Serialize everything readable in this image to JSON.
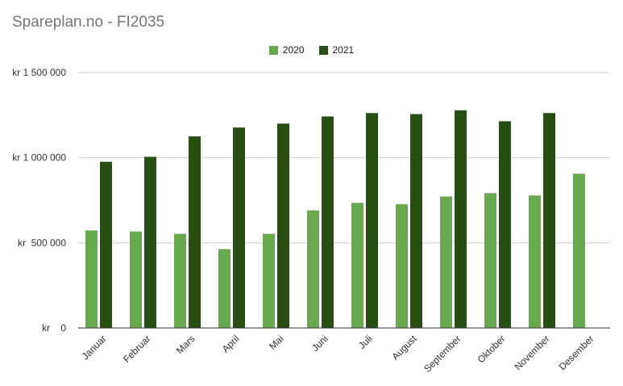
{
  "chart_data": {
    "type": "bar",
    "title": "Spareplan.no - FI2035",
    "categories": [
      "Januar",
      "Februar",
      "Mars",
      "April",
      "Mai",
      "Juni",
      "Juli",
      "August",
      "September",
      "Oktober",
      "November",
      "Desember"
    ],
    "series": [
      {
        "name": "2020",
        "color": "#6aa84f",
        "values": [
          573000,
          566000,
          553000,
          463000,
          553000,
          690000,
          735000,
          727000,
          772000,
          792000,
          778000,
          906000
        ]
      },
      {
        "name": "2021",
        "color": "#274e13",
        "values": [
          976000,
          1005000,
          1125000,
          1177000,
          1200000,
          1242000,
          1262000,
          1256000,
          1278000,
          1214000,
          1262000,
          null
        ]
      }
    ],
    "ylim": [
      0,
      1500000
    ],
    "yticks": [
      {
        "value": 0,
        "label": "kr    0"
      },
      {
        "value": 500000,
        "label": "kr  500 000"
      },
      {
        "value": 1000000,
        "label": "kr 1 000 000"
      },
      {
        "value": 1500000,
        "label": "kr 1 500 000"
      }
    ],
    "grid": true,
    "legend_position": "top-center",
    "xlabel": "",
    "ylabel": ""
  }
}
